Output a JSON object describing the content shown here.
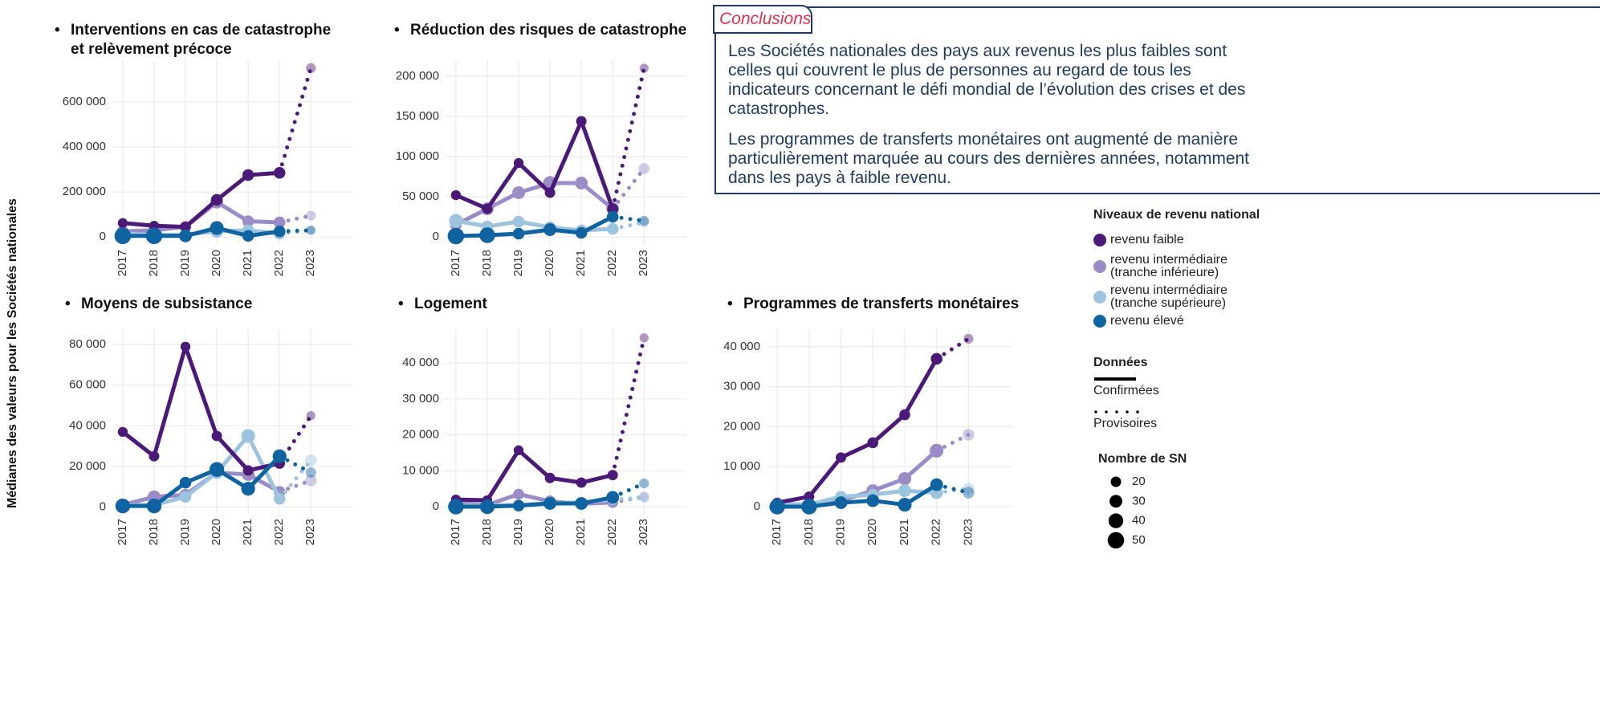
{
  "y_axis_title": "Médianes des valeurs pour les Sociétés nationales",
  "conclusions": {
    "title": "Conclusions",
    "paragraphs": [
      "Les Sociétés nationales des pays aux revenus les plus faibles sont celles qui couvrent le plus de personnes au regard de tous les indicateurs concernant le défi mondial de l’évolution des crises et des catastrophes.",
      "Les programmes de transferts monétaires ont augmenté de manière particulièrement marquée au cours des dernières années, notamment dans les pays à faible revenu."
    ]
  },
  "legend": {
    "title": "Niveaux de revenu national",
    "items": [
      {
        "name": "revenu faible",
        "color": "#4b1a78"
      },
      {
        "name": "revenu intermédiaire (tranche inférieure)",
        "color": "#9b8cc8"
      },
      {
        "name": "revenu intermédiaire (tranche supérieure)",
        "color": "#9dc4de"
      },
      {
        "name": "revenu élevé",
        "color": "#0f63a0"
      }
    ]
  },
  "data_legend": {
    "title": "Données",
    "confirmed": "Confirmées",
    "provisional": "Provisoires"
  },
  "size_legend": {
    "title": "Nombre de SN",
    "values": [
      20,
      30,
      40,
      50
    ]
  },
  "chart_data": [
    {
      "type": "line",
      "title": "Interventions en cas de catastrophe et relèvement précoce",
      "x": [
        2017,
        2018,
        2019,
        2020,
        2021,
        2022,
        2023
      ],
      "xlim": [
        2016.67,
        2024.35
      ],
      "xticks": [
        2017,
        2018,
        2019,
        2020,
        2021,
        2022,
        2023
      ],
      "ylim": [
        -35000,
        785000
      ],
      "yticks": [
        0,
        {
          "value": 200000,
          "label": "200 000"
        },
        {
          "value": 400000,
          "label": "400 000"
        },
        {
          "value": 600000,
          "label": "600 000"
        }
      ],
      "provisional_x": 2023,
      "grid": true,
      "series": [
        {
          "values": [
            62000,
            50000,
            45000,
            165000,
            275000,
            285000,
            750000
          ],
          "sizes": [
            18,
            18,
            20,
            25,
            25,
            25,
            18
          ]
        },
        {
          "values": [
            25000,
            30000,
            45000,
            155000,
            70000,
            65000,
            95000
          ],
          "sizes": [
            25,
            25,
            25,
            30,
            25,
            25,
            18
          ]
        },
        {
          "values": [
            15000,
            10000,
            10000,
            25000,
            30000,
            15000,
            30000
          ],
          "sizes": [
            20,
            20,
            20,
            30,
            25,
            25,
            15
          ]
        },
        {
          "values": [
            5000,
            5000,
            5000,
            40000,
            5000,
            25000,
            30000
          ],
          "sizes": [
            50,
            50,
            30,
            35,
            25,
            25,
            15
          ]
        }
      ]
    },
    {
      "type": "line",
      "title": "Réduction des risques de catastrophe",
      "x": [
        2017,
        2018,
        2019,
        2020,
        2021,
        2022,
        2023
      ],
      "xlim": [
        2016.67,
        2024.35
      ],
      "xticks": [
        2017,
        2018,
        2019,
        2020,
        2021,
        2022,
        2023
      ],
      "ylim": [
        -10000,
        220000
      ],
      "yticks": [
        0,
        {
          "value": 50000,
          "label": "50 000"
        },
        {
          "value": 100000,
          "label": "100 000"
        },
        {
          "value": 150000,
          "label": "150 000"
        },
        {
          "value": 200000,
          "label": "200 000"
        }
      ],
      "provisional_x": 2023,
      "grid": true,
      "series": [
        {
          "values": [
            52000,
            35000,
            92000,
            55000,
            144000,
            35000,
            210000
          ],
          "sizes": [
            18,
            20,
            18,
            20,
            20,
            22,
            15
          ]
        },
        {
          "values": [
            15000,
            35000,
            55000,
            67000,
            67000,
            35000,
            85000
          ],
          "sizes": [
            25,
            30,
            30,
            35,
            30,
            30,
            22
          ]
        },
        {
          "values": [
            20000,
            13000,
            19000,
            12000,
            8000,
            10000,
            18000
          ],
          "sizes": [
            35,
            25,
            25,
            25,
            25,
            25,
            18
          ]
        },
        {
          "values": [
            1000,
            2000,
            4000,
            9000,
            5000,
            25000,
            20000
          ],
          "sizes": [
            50,
            45,
            25,
            30,
            25,
            25,
            18
          ]
        }
      ]
    },
    {
      "type": "line",
      "title": "Moyens de subsistance",
      "x": [
        2017,
        2018,
        2019,
        2020,
        2021,
        2022,
        2023
      ],
      "xlim": [
        2016.67,
        2024.35
      ],
      "xticks": [
        2017,
        2018,
        2019,
        2020,
        2021,
        2022,
        2023
      ],
      "ylim": [
        -3400,
        87600
      ],
      "yticks": [
        0,
        {
          "value": 20000,
          "label": "20 000"
        },
        {
          "value": 40000,
          "label": "40 000"
        },
        {
          "value": 60000,
          "label": "60 000"
        },
        {
          "value": 80000,
          "label": "80 000"
        }
      ],
      "provisional_x": 2023,
      "grid": true,
      "series": [
        {
          "values": [
            37000,
            25000,
            79000,
            35000,
            18000,
            21500,
            45000
          ],
          "sizes": [
            18,
            20,
            18,
            20,
            20,
            22,
            15
          ]
        },
        {
          "values": [
            1000,
            5000,
            6000,
            17000,
            16000,
            7500,
            13000
          ],
          "sizes": [
            25,
            30,
            25,
            30,
            30,
            25,
            25
          ]
        },
        {
          "values": [
            1000,
            1000,
            5000,
            17000,
            35000,
            4000,
            23000
          ],
          "sizes": [
            25,
            20,
            25,
            30,
            35,
            25,
            25
          ]
        },
        {
          "values": [
            500,
            500,
            12000,
            18500,
            9000,
            25000,
            17000
          ],
          "sizes": [
            40,
            40,
            25,
            40,
            35,
            35,
            20
          ]
        }
      ]
    },
    {
      "type": "line",
      "title": "Logement",
      "x": [
        2017,
        2018,
        2019,
        2020,
        2021,
        2022,
        2023
      ],
      "xlim": [
        2016.67,
        2024.35
      ],
      "xticks": [
        2017,
        2018,
        2019,
        2020,
        2021,
        2022,
        2023
      ],
      "ylim": [
        -2000,
        49400
      ],
      "yticks": [
        0,
        {
          "value": 10000,
          "label": "10 000"
        },
        {
          "value": 20000,
          "label": "20 000"
        },
        {
          "value": 30000,
          "label": "30 000"
        },
        {
          "value": 40000,
          "label": "40 000"
        }
      ],
      "provisional_x": 2023,
      "grid": true,
      "series": [
        {
          "values": [
            2000,
            1800,
            15700,
            8000,
            6700,
            8800,
            47000
          ],
          "sizes": [
            18,
            18,
            18,
            20,
            20,
            20,
            15
          ]
        },
        {
          "values": [
            1000,
            500,
            3500,
            1500,
            800,
            1200,
            2800
          ],
          "sizes": [
            20,
            20,
            22,
            25,
            22,
            22,
            18
          ]
        },
        {
          "values": [
            300,
            300,
            500,
            1000,
            1200,
            2000,
            2500
          ],
          "sizes": [
            20,
            20,
            20,
            22,
            22,
            22,
            18
          ]
        },
        {
          "values": [
            0,
            0,
            300,
            900,
            900,
            2600,
            6500
          ],
          "sizes": [
            45,
            40,
            25,
            30,
            30,
            30,
            18
          ]
        }
      ]
    },
    {
      "type": "line",
      "title": "Programmes de transferts monétaires",
      "x": [
        2017,
        2018,
        2019,
        2020,
        2021,
        2022,
        2023
      ],
      "xlim": [
        2016.67,
        2024.35
      ],
      "xticks": [
        2017,
        2018,
        2019,
        2020,
        2021,
        2022,
        2023
      ],
      "ylim": [
        -1800,
        44400
      ],
      "yticks": [
        0,
        {
          "value": 10000,
          "label": "10 000"
        },
        {
          "value": 20000,
          "label": "20 000"
        },
        {
          "value": 30000,
          "label": "30 000"
        },
        {
          "value": 40000,
          "label": "40 000"
        }
      ],
      "provisional_x": 2023,
      "grid": true,
      "series": [
        {
          "values": [
            1000,
            2500,
            12300,
            16000,
            23000,
            37000,
            42000
          ],
          "sizes": [
            18,
            20,
            20,
            22,
            22,
            25,
            18
          ]
        },
        {
          "values": [
            500,
            500,
            1500,
            4000,
            7000,
            14000,
            18000
          ],
          "sizes": [
            25,
            25,
            25,
            30,
            32,
            35,
            25
          ]
        },
        {
          "values": [
            800,
            500,
            2500,
            3000,
            4000,
            3500,
            4500
          ],
          "sizes": [
            25,
            25,
            25,
            25,
            30,
            30,
            25
          ]
        },
        {
          "values": [
            0,
            0,
            1000,
            1500,
            500,
            5500,
            3500
          ],
          "sizes": [
            45,
            45,
            30,
            30,
            35,
            30,
            25
          ]
        }
      ]
    }
  ]
}
